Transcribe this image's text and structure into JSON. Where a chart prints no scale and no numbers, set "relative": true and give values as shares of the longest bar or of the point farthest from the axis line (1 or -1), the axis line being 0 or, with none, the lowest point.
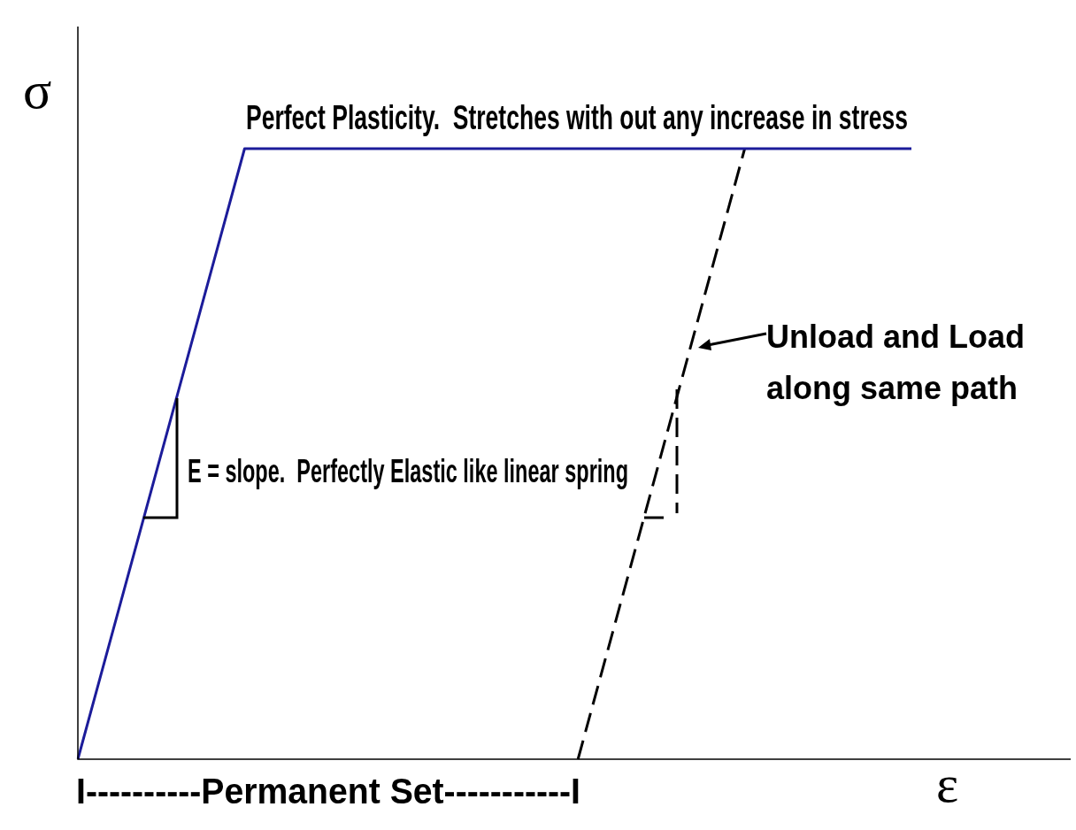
{
  "chart_data": {
    "type": "line",
    "relative": true,
    "xlabel": "ε",
    "ylabel": "σ",
    "marker": "none",
    "legend": false,
    "categories": [
      null,
      null,
      null,
      null,
      null,
      null
    ],
    "series": [
      {
        "color": "#1c1c9a",
        "line_style": "solid",
        "values": [
          0,
          1,
          1,
          1,
          1,
          1
        ]
      },
      {
        "color": "#000000",
        "line_style": "dashed",
        "values": [
          null,
          null,
          null,
          0,
          1,
          null
        ]
      }
    ],
    "annotations": [
      "Perfect Plasticity.  Stretches with out any increase in stress",
      "E = slope.  Perfectly Elastic like linear spring",
      "Unload and Load along same path",
      "I----------Permanent Set-----------I"
    ]
  }
}
